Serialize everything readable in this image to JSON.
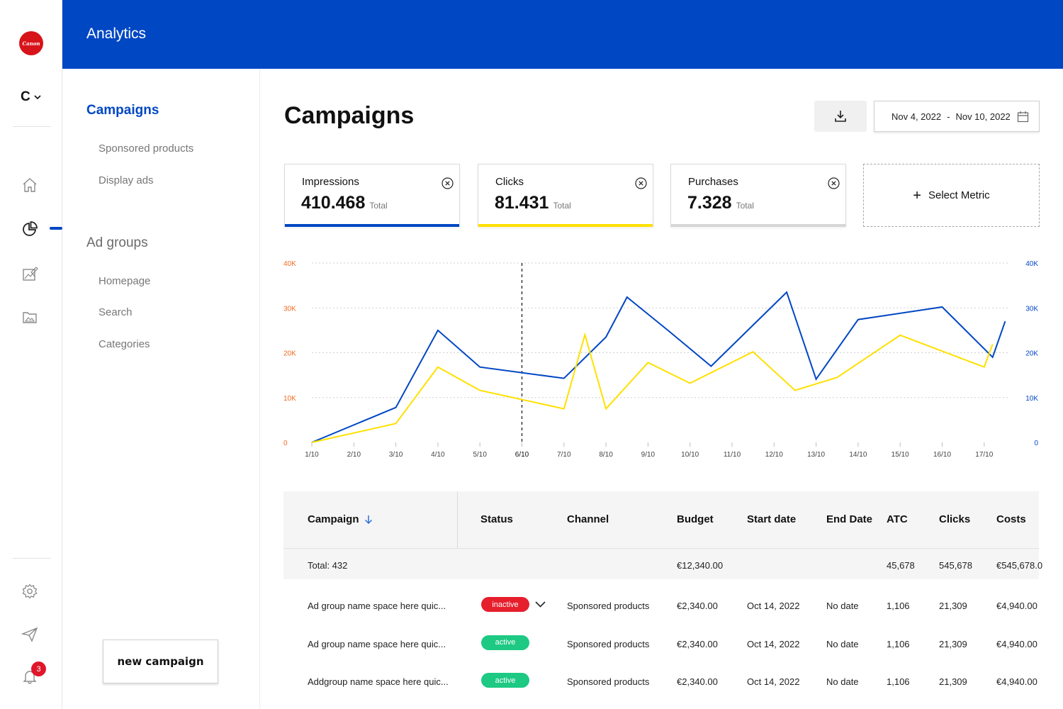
{
  "brand": {
    "logo_text": "Canon",
    "workspace_letter": "C"
  },
  "header": {
    "title": "Analytics"
  },
  "rail": {
    "notifications_count": "3"
  },
  "subnav": {
    "campaigns_title": "Campaigns",
    "campaign_items": [
      "Sponsored products",
      "Display ads"
    ],
    "ad_groups_title": "Ad groups",
    "ad_group_items": [
      "Homepage",
      "Search",
      "Categories"
    ],
    "new_campaign_label": "new campaign"
  },
  "main": {
    "title": "Campaigns",
    "date_start": "Nov 4, 2022",
    "date_sep": "-",
    "date_end": "Nov 10, 2022",
    "metrics": [
      {
        "label": "Impressions",
        "value": "410.468",
        "suffix": "Total",
        "color": "#0047c4"
      },
      {
        "label": "Clicks",
        "value": "81.431",
        "suffix": "Total",
        "color": "#ffe000"
      },
      {
        "label": "Purchases",
        "value": "7.328",
        "suffix": "Total",
        "color": "#d6d6d6"
      }
    ],
    "select_metric_label": "Select Metric"
  },
  "chart_data": {
    "type": "line",
    "x": [
      "1/10",
      "2/10",
      "3/10",
      "4/10",
      "5/10",
      "6/10",
      "7/10",
      "8/10",
      "9/10",
      "10/10",
      "11/10",
      "12/10",
      "13/10",
      "14/10",
      "15/10",
      "16/10",
      "17/10"
    ],
    "series": [
      {
        "color": "#0047c4",
        "points": [
          [
            0,
            0
          ],
          [
            2,
            7800
          ],
          [
            3,
            25000
          ],
          [
            4,
            16800
          ],
          [
            6,
            14300
          ],
          [
            7,
            23500
          ],
          [
            7.5,
            32400
          ],
          [
            8.5,
            24800
          ],
          [
            9.5,
            17000
          ],
          [
            11.3,
            33500
          ],
          [
            12,
            14100
          ],
          [
            13,
            27400
          ],
          [
            15,
            30200
          ],
          [
            16.2,
            19000
          ],
          [
            16.5,
            27000
          ]
        ]
      },
      {
        "color": "#ffe000",
        "points": [
          [
            0,
            0
          ],
          [
            2,
            4200
          ],
          [
            3,
            16800
          ],
          [
            4,
            11600
          ],
          [
            6,
            7500
          ],
          [
            6.5,
            24000
          ],
          [
            7,
            7500
          ],
          [
            8,
            17800
          ],
          [
            9,
            13200
          ],
          [
            10.5,
            20200
          ],
          [
            11.5,
            11600
          ],
          [
            12.5,
            14500
          ],
          [
            14,
            23900
          ],
          [
            16,
            16800
          ],
          [
            16.2,
            21900
          ]
        ]
      }
    ],
    "y_left": {
      "ticks": [
        "0",
        "10K",
        "20K",
        "30K",
        "40K"
      ],
      "color": "#f26a22"
    },
    "y_right": {
      "ticks": [
        "0",
        "10K",
        "20K",
        "30K",
        "40K"
      ],
      "color": "#0047c4"
    },
    "ylim": [
      0,
      40000
    ],
    "marker_category": "6/10",
    "grid": true
  },
  "table": {
    "headers": [
      "Campaign",
      "Status",
      "Channel",
      "Budget",
      "Start date",
      "End Date",
      "ATC",
      "Clicks",
      "Costs"
    ],
    "total": {
      "label": "Total: 432",
      "budget": "€12,340.00",
      "atc": "45,678",
      "clicks": "545,678",
      "costs": "€545,678.0"
    },
    "rows": [
      {
        "campaign": "Ad group name space here quic...",
        "status": "inactive",
        "channel": "Sponsored products",
        "budget": "€2,340.00",
        "start": "Oct 14, 2022",
        "end": "No date",
        "atc": "1,106",
        "clicks": "21,309",
        "costs": "€4,940.00"
      },
      {
        "campaign": "Ad group name space here quic...",
        "status": "active",
        "channel": "Sponsored products",
        "budget": "€2,340.00",
        "start": "Oct 14, 2022",
        "end": "No date",
        "atc": "1,106",
        "clicks": "21,309",
        "costs": "€4,940.00"
      },
      {
        "campaign": "Addgroup name space here quic...",
        "status": "active",
        "channel": "Sponsored products",
        "budget": "€2,340.00",
        "start": "Oct 14, 2022",
        "end": "No date",
        "atc": "1,106",
        "clicks": "21,309",
        "costs": "€4,940.00"
      }
    ]
  }
}
